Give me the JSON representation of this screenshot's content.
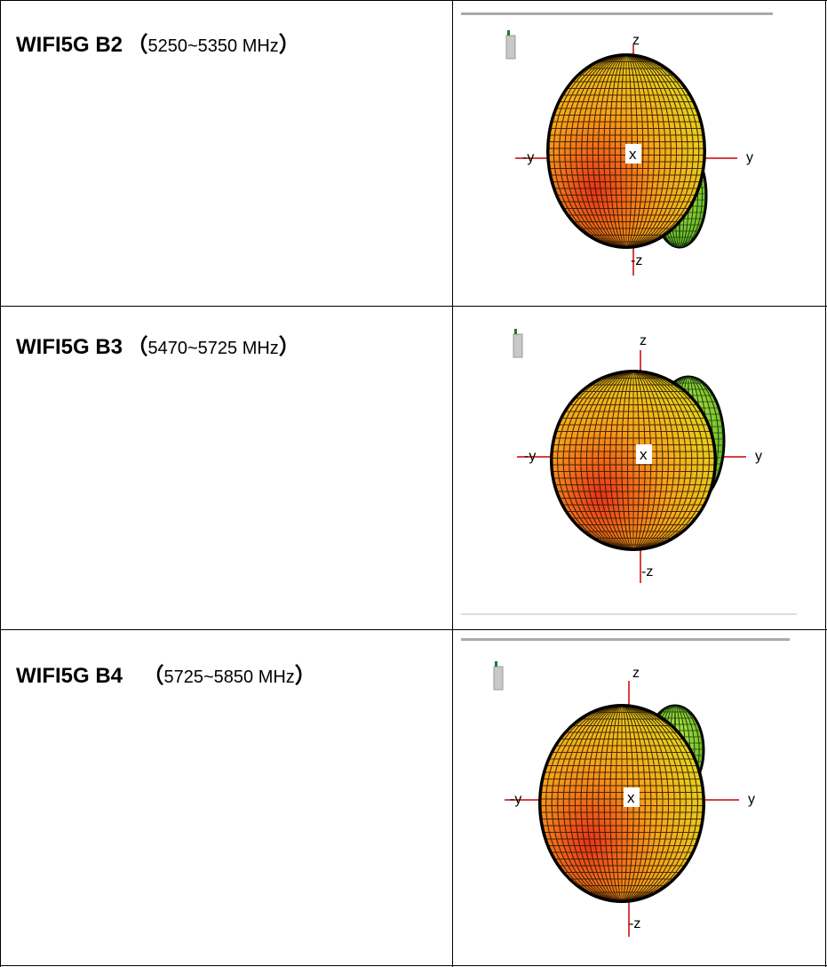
{
  "rows": [
    {
      "name": "WIFI5G B2",
      "open": "（",
      "freq": "5250~5350 MHz",
      "close": "）",
      "axes": {
        "z": "z",
        "neg_z": "-z",
        "y": "y",
        "neg_y": "-y",
        "x": "x"
      }
    },
    {
      "name": "WIFI5G B3",
      "open": "（",
      "freq": "5470~5725 MHz",
      "close": "）",
      "axes": {
        "z": "z",
        "neg_z": "-z",
        "y": "y",
        "neg_y": "-y",
        "x": "x"
      }
    },
    {
      "name": "WIFI5G B4",
      "open": "（",
      "freq": "5725~5850 MHz",
      "close": "）",
      "axes": {
        "z": "z",
        "neg_z": "-z",
        "y": "y",
        "neg_y": "-y",
        "x": "x"
      }
    }
  ],
  "colors": {
    "axis": "#cc0000",
    "hot": "#e8331a",
    "warm": "#f7a21b",
    "cool": "#9ad62a",
    "grid": "#000000"
  },
  "icons": [
    "antenna-icon",
    "antenna-icon",
    "antenna-icon"
  ]
}
